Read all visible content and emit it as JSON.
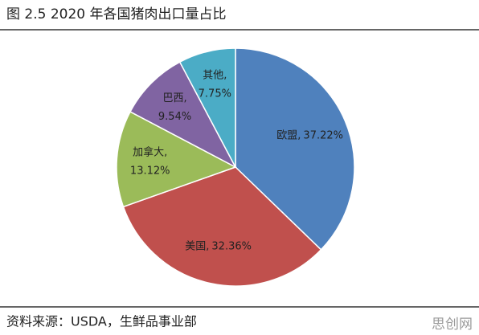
{
  "chart_data": {
    "type": "pie",
    "title": "图 2.5 2020 年各国猪肉出口量占比",
    "categories": [
      "欧盟",
      "美国",
      "加拿大",
      "巴西",
      "其他"
    ],
    "label_separator": ",",
    "values": [
      37.22,
      32.36,
      13.12,
      9.54,
      7.75
    ],
    "value_labels": [
      "37.22%",
      "32.36%",
      "13.12%",
      "9.54%",
      "7.75%"
    ],
    "colors": [
      "#4f81bd",
      "#c0504d",
      "#9bbb59",
      "#8064a2",
      "#4bacc6"
    ],
    "source": "资料来源：USDA，生鲜品事业部",
    "watermark": "思创网"
  }
}
